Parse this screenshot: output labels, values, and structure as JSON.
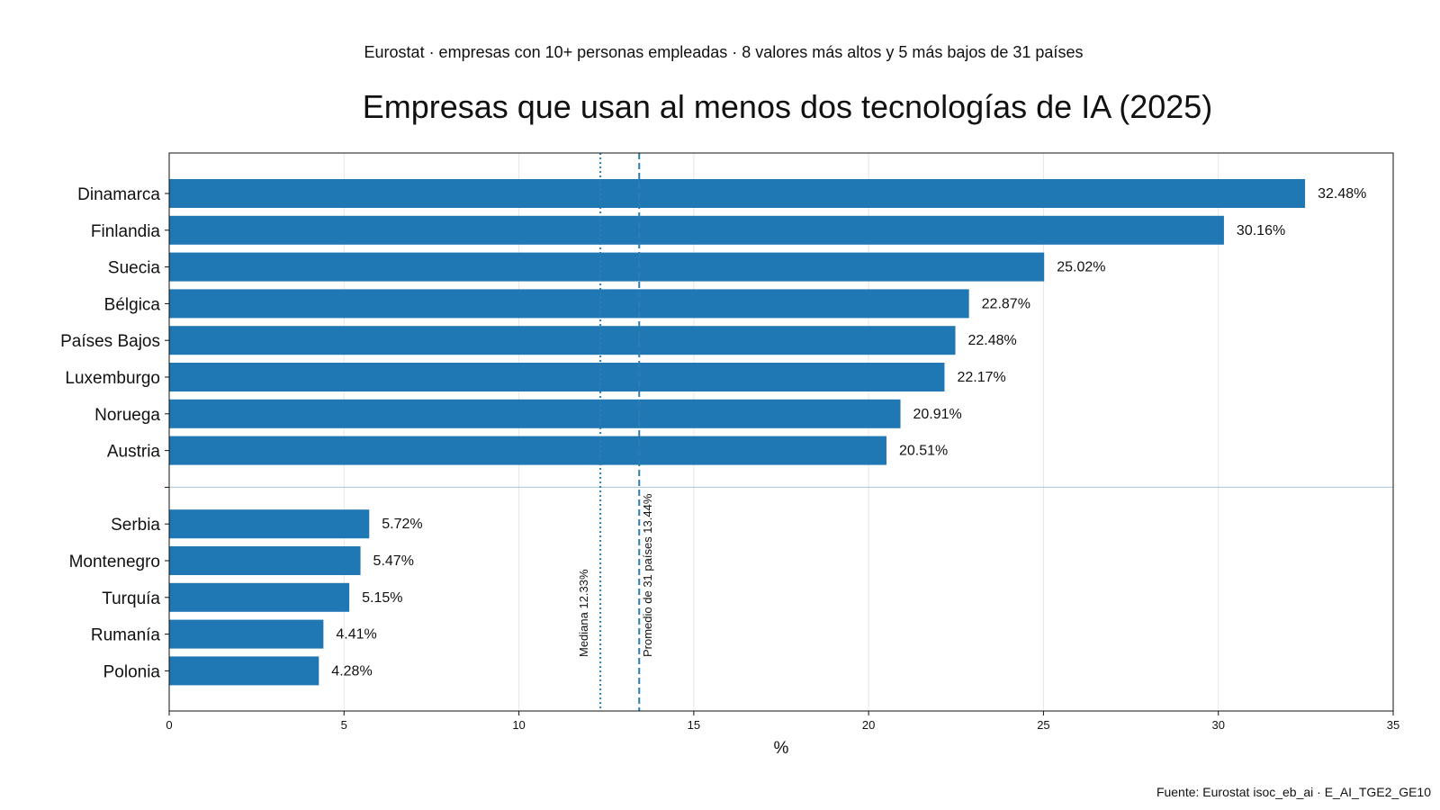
{
  "header": {
    "subtitle": "Eurostat · empresas con 10+ personas empleadas · 8 valores más altos y 5 más bajos de 31 países",
    "title": "Empresas que usan al menos dos tecnologías de IA (2025)"
  },
  "footer": {
    "source": "Fuente: Eurostat isoc_eb_ai · E_AI_TGE2_GE10"
  },
  "chart_data": {
    "type": "bar",
    "orientation": "horizontal",
    "title": "Empresas que usan al menos dos tecnologías de IA (2025)",
    "xlabel": "%",
    "ylabel": "",
    "xlim": [
      0,
      35
    ],
    "xticks": [
      0,
      5,
      10,
      15,
      20,
      25,
      30,
      35
    ],
    "grid": "vertical",
    "bar_color": "#1f77b4",
    "top_group": {
      "categories": [
        "Dinamarca",
        "Finlandia",
        "Suecia",
        "Bélgica",
        "Países Bajos",
        "Luxemburgo",
        "Noruega",
        "Austria"
      ],
      "values": [
        32.48,
        30.16,
        25.02,
        22.87,
        22.48,
        22.17,
        20.91,
        20.51
      ],
      "value_labels": [
        "32.48%",
        "30.16%",
        "25.02%",
        "22.87%",
        "22.48%",
        "22.17%",
        "20.91%",
        "20.51%"
      ]
    },
    "bottom_group": {
      "categories": [
        "Serbia",
        "Montenegro",
        "Turquía",
        "Rumanía",
        "Polonia"
      ],
      "values": [
        5.72,
        5.47,
        5.15,
        4.41,
        4.28
      ],
      "value_labels": [
        "5.72%",
        "5.47%",
        "5.15%",
        "4.41%",
        "4.28%"
      ]
    },
    "reference_lines": [
      {
        "label": "Mediana 12.33%",
        "value": 12.33,
        "style": "dotted",
        "color": "#2a7fb0"
      },
      {
        "label": "Promedio de 31 países 13.44%",
        "value": 13.44,
        "style": "dashed",
        "color": "#2a7fb0"
      }
    ]
  }
}
